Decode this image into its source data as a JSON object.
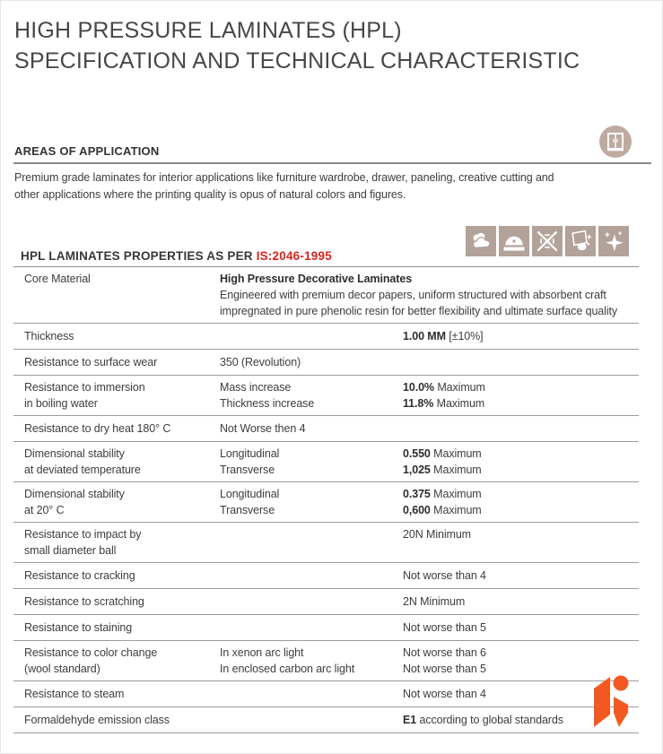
{
  "header": {
    "title_line1": "HIGH PRESSURE LAMINATES (HPL)",
    "title_line2": "SPECIFICATION AND TECHNICAL CHARACTERISTIC"
  },
  "areas": {
    "heading": "AREAS OF APPLICATION",
    "paragraph": "Premium grade laminates for interior applications like furniture wardrobe, drawer, paneling, creative cutting and other applications where the printing quality is opus of natural colors and figures.",
    "icon": "wardrobe-icon"
  },
  "properties": {
    "heading_prefix": "HPL LAMINATES PROPERTIES AS PER ",
    "standard": "IS:2046-1995",
    "icons": [
      "clouds-icon",
      "saw-blade-icon",
      "scratch-proof-icon",
      "easy-clean-icon",
      "sparkle-shine-icon"
    ]
  },
  "colors": {
    "accent_red": "#d8231f",
    "icon_tan": "#b3a29a",
    "logo_orange": "#f25922"
  },
  "table": {
    "rows": [
      {
        "name": [
          "Core Material"
        ],
        "desc_title": "High Pressure Decorative Laminates",
        "desc_text": "Engineered with premium decor papers, uniform structured with absorbent craft impregnated in pure phenolic resin for better flexibility and ultimate surface quality"
      },
      {
        "name": [
          "Thickness"
        ],
        "col2": [],
        "col3": [
          {
            "b": "1.00 MM",
            "t": " [±10%]"
          }
        ]
      },
      {
        "name": [
          "Resistance to surface wear"
        ],
        "col2": [
          "350 (Revolution)"
        ],
        "col3": []
      },
      {
        "name": [
          "Resistance to immersion",
          "in boiling water"
        ],
        "col2": [
          "Mass increase",
          "Thickness increase"
        ],
        "col3": [
          {
            "b": "10.0%",
            "t": " Maximum"
          },
          {
            "b": "11.8%",
            "t": " Maximum"
          }
        ]
      },
      {
        "name": [
          "Resistance to dry heat 180° C"
        ],
        "col2": [
          "Not Worse then 4"
        ],
        "col3": []
      },
      {
        "name": [
          "Dimensional stability",
          "at deviated temperature"
        ],
        "col2": [
          "Longitudinal",
          "Transverse"
        ],
        "col3": [
          {
            "b": "0.550",
            "t": " Maximum"
          },
          {
            "b": "1,025",
            "t": " Maximum"
          }
        ]
      },
      {
        "name": [
          "Dimensional stability",
          "at 20° C"
        ],
        "col2": [
          "Longitudinal",
          "Transverse"
        ],
        "col3": [
          {
            "b": "0.375",
            "t": " Maximum"
          },
          {
            "b": "0,600",
            "t": " Maximum"
          }
        ]
      },
      {
        "name": [
          "Resistance to impact by",
          "small diameter ball"
        ],
        "col2": [],
        "col3": [
          {
            "b": "",
            "t": "20N Minimum"
          }
        ]
      },
      {
        "name": [
          "Resistance to cracking"
        ],
        "col2": [],
        "col3": [
          {
            "b": "",
            "t": "Not worse than 4"
          }
        ]
      },
      {
        "name": [
          "Resistance to scratching"
        ],
        "col2": [],
        "col3": [
          {
            "b": "",
            "t": "2N Minimum"
          }
        ]
      },
      {
        "name": [
          "Resistance to staining"
        ],
        "col2": [],
        "col3": [
          {
            "b": "",
            "t": "Not worse than 5"
          }
        ]
      },
      {
        "name": [
          "Resistance to color change",
          "(wool standard)"
        ],
        "col2": [
          "In xenon arc light",
          "In enclosed carbon arc light"
        ],
        "col3": [
          {
            "b": "",
            "t": "Not worse than 6"
          },
          {
            "b": "",
            "t": "Not worse than 5"
          }
        ]
      },
      {
        "name": [
          "Resistance to steam"
        ],
        "col2": [],
        "col3": [
          {
            "b": "",
            "t": "Not worse than 4"
          }
        ]
      },
      {
        "name": [
          "Formaldehyde emission class"
        ],
        "col2": [],
        "col3": [
          {
            "b": "E1",
            "t": " according to global standards"
          }
        ]
      }
    ]
  },
  "logo": {
    "name": "brand-k-logo"
  }
}
